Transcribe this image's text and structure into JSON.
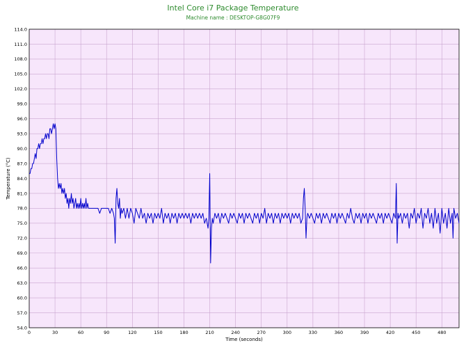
{
  "chart_data": {
    "type": "line",
    "title": "Intel Core i7 Package Temperature",
    "subtitle": "Machine name : DESKTOP-G8G07F9",
    "xlabel": "Time (seconds)",
    "ylabel": "Temperature (°C)",
    "xlim": [
      0,
      500
    ],
    "ylim": [
      54,
      114
    ],
    "xticks": [
      0,
      30,
      60,
      90,
      120,
      150,
      180,
      210,
      240,
      270,
      300,
      330,
      360,
      390,
      420,
      450,
      480
    ],
    "xtick_labels": [
      "0",
      "30",
      "60",
      "90",
      "120",
      "150",
      "180",
      "210",
      "240",
      "270",
      "300",
      "330",
      "360",
      "390",
      "420",
      "450",
      "480"
    ],
    "yticks": [
      54,
      57,
      60,
      63,
      66,
      69,
      72,
      75,
      78,
      81,
      84,
      87,
      90,
      93,
      96,
      99,
      102,
      105,
      108,
      111,
      114
    ],
    "ytick_labels": [
      "54.0",
      "57.0",
      "60.0",
      "63.0",
      "66.0",
      "69.0",
      "72.0",
      "75.0",
      "78.0",
      "81.0",
      "84.0",
      "87.0",
      "90.0",
      "93.0",
      "96.0",
      "99.0",
      "102.0",
      "105.0",
      "108.0",
      "111.0",
      "114.0"
    ],
    "grid": true,
    "colors": {
      "line": "#0000cc",
      "plot_bg": "#f7e6fb",
      "grid": "#c9a5cf",
      "title": "#2e8b2e"
    },
    "series": [
      {
        "values": [
          [
            0,
            85
          ],
          [
            1,
            85
          ],
          [
            2,
            86
          ],
          [
            3,
            86
          ],
          [
            4,
            87
          ],
          [
            5,
            87
          ],
          [
            6,
            88
          ],
          [
            7,
            89
          ],
          [
            8,
            88
          ],
          [
            9,
            90
          ],
          [
            10,
            90
          ],
          [
            11,
            91
          ],
          [
            12,
            90
          ],
          [
            13,
            91
          ],
          [
            14,
            91
          ],
          [
            15,
            92
          ],
          [
            16,
            91
          ],
          [
            17,
            92
          ],
          [
            18,
            92
          ],
          [
            19,
            93
          ],
          [
            20,
            92
          ],
          [
            21,
            93
          ],
          [
            22,
            93
          ],
          [
            23,
            92
          ],
          [
            24,
            94
          ],
          [
            25,
            94
          ],
          [
            26,
            93
          ],
          [
            27,
            94
          ],
          [
            28,
            95
          ],
          [
            29,
            94
          ],
          [
            30,
            95
          ],
          [
            31,
            94
          ],
          [
            32,
            88
          ],
          [
            33,
            84
          ],
          [
            34,
            82
          ],
          [
            35,
            83
          ],
          [
            36,
            82
          ],
          [
            37,
            83
          ],
          [
            38,
            81
          ],
          [
            39,
            82
          ],
          [
            40,
            81
          ],
          [
            41,
            82
          ],
          [
            42,
            80
          ],
          [
            43,
            81
          ],
          [
            44,
            79
          ],
          [
            45,
            80
          ],
          [
            46,
            78
          ],
          [
            47,
            80
          ],
          [
            48,
            79
          ],
          [
            49,
            81
          ],
          [
            50,
            79
          ],
          [
            51,
            80
          ],
          [
            52,
            78
          ],
          [
            53,
            79
          ],
          [
            54,
            80
          ],
          [
            55,
            78
          ],
          [
            56,
            79
          ],
          [
            57,
            78
          ],
          [
            58,
            79
          ],
          [
            59,
            78
          ],
          [
            60,
            80
          ],
          [
            61,
            78
          ],
          [
            62,
            79
          ],
          [
            63,
            78
          ],
          [
            64,
            79
          ],
          [
            65,
            78
          ],
          [
            66,
            80
          ],
          [
            67,
            78
          ],
          [
            68,
            79
          ],
          [
            69,
            78
          ],
          [
            70,
            78
          ],
          [
            75,
            78
          ],
          [
            80,
            78
          ],
          [
            82,
            77
          ],
          [
            84,
            78
          ],
          [
            86,
            78
          ],
          [
            88,
            78
          ],
          [
            90,
            78
          ],
          [
            92,
            78
          ],
          [
            94,
            77
          ],
          [
            96,
            78
          ],
          [
            98,
            77
          ],
          [
            99,
            76
          ],
          [
            100,
            71
          ],
          [
            101,
            80
          ],
          [
            102,
            82
          ],
          [
            103,
            79
          ],
          [
            104,
            78
          ],
          [
            105,
            80
          ],
          [
            106,
            76
          ],
          [
            107,
            78
          ],
          [
            108,
            77
          ],
          [
            110,
            78
          ],
          [
            112,
            76
          ],
          [
            114,
            78
          ],
          [
            116,
            76
          ],
          [
            118,
            78
          ],
          [
            120,
            77
          ],
          [
            122,
            75
          ],
          [
            124,
            78
          ],
          [
            126,
            77
          ],
          [
            128,
            76
          ],
          [
            130,
            78
          ],
          [
            132,
            76
          ],
          [
            134,
            77
          ],
          [
            136,
            75
          ],
          [
            138,
            77
          ],
          [
            140,
            76
          ],
          [
            142,
            77
          ],
          [
            144,
            75
          ],
          [
            146,
            77
          ],
          [
            148,
            76
          ],
          [
            150,
            77
          ],
          [
            152,
            76
          ],
          [
            154,
            78
          ],
          [
            156,
            75
          ],
          [
            158,
            77
          ],
          [
            160,
            76
          ],
          [
            162,
            77
          ],
          [
            164,
            75
          ],
          [
            166,
            77
          ],
          [
            168,
            76
          ],
          [
            170,
            77
          ],
          [
            172,
            75
          ],
          [
            174,
            77
          ],
          [
            176,
            76
          ],
          [
            178,
            77
          ],
          [
            180,
            76
          ],
          [
            182,
            77
          ],
          [
            184,
            76
          ],
          [
            186,
            77
          ],
          [
            188,
            75
          ],
          [
            190,
            77
          ],
          [
            192,
            76
          ],
          [
            194,
            77
          ],
          [
            196,
            76
          ],
          [
            198,
            77
          ],
          [
            200,
            76
          ],
          [
            202,
            77
          ],
          [
            204,
            75
          ],
          [
            206,
            76
          ],
          [
            208,
            74
          ],
          [
            209,
            76
          ],
          [
            210,
            85
          ],
          [
            211,
            67
          ],
          [
            212,
            74
          ],
          [
            213,
            76
          ],
          [
            214,
            75
          ],
          [
            216,
            77
          ],
          [
            218,
            76
          ],
          [
            220,
            77
          ],
          [
            222,
            75
          ],
          [
            224,
            77
          ],
          [
            226,
            76
          ],
          [
            228,
            77
          ],
          [
            230,
            76
          ],
          [
            232,
            75
          ],
          [
            234,
            77
          ],
          [
            236,
            76
          ],
          [
            238,
            77
          ],
          [
            240,
            76
          ],
          [
            242,
            75
          ],
          [
            244,
            77
          ],
          [
            246,
            76
          ],
          [
            248,
            77
          ],
          [
            250,
            75
          ],
          [
            252,
            77
          ],
          [
            254,
            76
          ],
          [
            256,
            77
          ],
          [
            258,
            76
          ],
          [
            260,
            75
          ],
          [
            262,
            77
          ],
          [
            264,
            76
          ],
          [
            266,
            77
          ],
          [
            268,
            75
          ],
          [
            270,
            77
          ],
          [
            272,
            76
          ],
          [
            274,
            78
          ],
          [
            276,
            75
          ],
          [
            278,
            77
          ],
          [
            280,
            76
          ],
          [
            282,
            77
          ],
          [
            284,
            75
          ],
          [
            286,
            77
          ],
          [
            288,
            76
          ],
          [
            290,
            77
          ],
          [
            292,
            75
          ],
          [
            294,
            77
          ],
          [
            296,
            76
          ],
          [
            298,
            77
          ],
          [
            300,
            76
          ],
          [
            302,
            77
          ],
          [
            304,
            75
          ],
          [
            306,
            77
          ],
          [
            308,
            76
          ],
          [
            310,
            77
          ],
          [
            312,
            76
          ],
          [
            314,
            77
          ],
          [
            316,
            75
          ],
          [
            318,
            76
          ],
          [
            319,
            80
          ],
          [
            320,
            82
          ],
          [
            321,
            78
          ],
          [
            322,
            72
          ],
          [
            323,
            76
          ],
          [
            324,
            77
          ],
          [
            326,
            76
          ],
          [
            328,
            77
          ],
          [
            330,
            76
          ],
          [
            332,
            75
          ],
          [
            334,
            77
          ],
          [
            336,
            76
          ],
          [
            338,
            77
          ],
          [
            340,
            75
          ],
          [
            342,
            77
          ],
          [
            344,
            76
          ],
          [
            346,
            77
          ],
          [
            348,
            76
          ],
          [
            350,
            75
          ],
          [
            352,
            77
          ],
          [
            354,
            76
          ],
          [
            356,
            77
          ],
          [
            358,
            75
          ],
          [
            360,
            77
          ],
          [
            362,
            76
          ],
          [
            364,
            77
          ],
          [
            366,
            76
          ],
          [
            368,
            75
          ],
          [
            370,
            77
          ],
          [
            372,
            76
          ],
          [
            374,
            78
          ],
          [
            376,
            76
          ],
          [
            378,
            75
          ],
          [
            380,
            77
          ],
          [
            382,
            76
          ],
          [
            384,
            77
          ],
          [
            386,
            75
          ],
          [
            388,
            77
          ],
          [
            390,
            76
          ],
          [
            392,
            77
          ],
          [
            394,
            75
          ],
          [
            396,
            77
          ],
          [
            398,
            76
          ],
          [
            400,
            77
          ],
          [
            402,
            76
          ],
          [
            404,
            75
          ],
          [
            406,
            77
          ],
          [
            408,
            76
          ],
          [
            410,
            77
          ],
          [
            412,
            75
          ],
          [
            414,
            77
          ],
          [
            416,
            76
          ],
          [
            418,
            77
          ],
          [
            420,
            76
          ],
          [
            422,
            75
          ],
          [
            424,
            77
          ],
          [
            426,
            76
          ],
          [
            427,
            83
          ],
          [
            428,
            71
          ],
          [
            429,
            77
          ],
          [
            430,
            76
          ],
          [
            432,
            77
          ],
          [
            434,
            75
          ],
          [
            436,
            77
          ],
          [
            438,
            76
          ],
          [
            440,
            77
          ],
          [
            442,
            74
          ],
          [
            444,
            77
          ],
          [
            446,
            76
          ],
          [
            448,
            78
          ],
          [
            450,
            75
          ],
          [
            452,
            77
          ],
          [
            454,
            76
          ],
          [
            456,
            78
          ],
          [
            458,
            74
          ],
          [
            460,
            77
          ],
          [
            462,
            76
          ],
          [
            464,
            78
          ],
          [
            466,
            75
          ],
          [
            468,
            77
          ],
          [
            470,
            74
          ],
          [
            472,
            78
          ],
          [
            474,
            75
          ],
          [
            476,
            77
          ],
          [
            478,
            73
          ],
          [
            480,
            78
          ],
          [
            482,
            75
          ],
          [
            484,
            77
          ],
          [
            486,
            74
          ],
          [
            488,
            78
          ],
          [
            490,
            75
          ],
          [
            492,
            77
          ],
          [
            493,
            72
          ],
          [
            494,
            78
          ],
          [
            496,
            76
          ],
          [
            498,
            77
          ],
          [
            500,
            75
          ]
        ]
      }
    ]
  }
}
